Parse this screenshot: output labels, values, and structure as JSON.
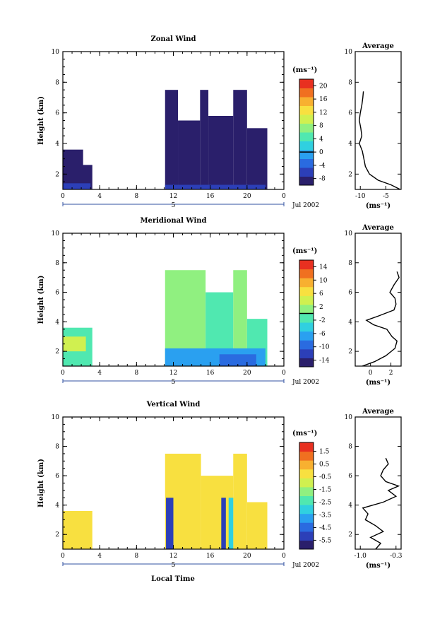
{
  "figure": {
    "xlabel": "Local Time",
    "date_label": "Jul 2002",
    "day_marker": "5",
    "height_label": "Height (km)",
    "unit": "(ms⁻¹)",
    "avg_title": "Average",
    "avg_unit": "(ms⁻¹)"
  },
  "colormap": [
    "#2a1f6b",
    "#2c3fb8",
    "#2a6be0",
    "#2aa0f0",
    "#30d0e0",
    "#50e8b0",
    "#90f080",
    "#d0f050",
    "#f8e040",
    "#f8b030",
    "#f07020",
    "#e83020"
  ],
  "chart_data": [
    {
      "type": "heatmap",
      "name": "zonal",
      "title": "Zonal Wind",
      "xlim": [
        0,
        24
      ],
      "ylim": [
        1,
        10
      ],
      "x_ticks": [
        "0",
        "4",
        "8",
        "12",
        "16",
        "20",
        "0"
      ],
      "y_ticks": [
        "2",
        "4",
        "6",
        "8",
        "10"
      ],
      "colorbar_ticks": [
        "20",
        "16",
        "12",
        "8",
        "4",
        "0",
        "-4",
        "-8"
      ],
      "colorbar_range": [
        -10,
        22
      ],
      "zero_level": 0,
      "data_blocks": [
        {
          "t": [
            0,
            2.2
          ],
          "h": [
            1.0,
            3.6
          ],
          "level": 0.02
        },
        {
          "t": [
            0,
            3.2
          ],
          "h": [
            1.0,
            2.6
          ],
          "level": 0.02
        },
        {
          "t": [
            0,
            3.0
          ],
          "h": [
            1.0,
            1.4
          ],
          "level": 0.12
        },
        {
          "t": [
            11.1,
            12.5
          ],
          "h": [
            1.0,
            7.5
          ],
          "level": 0.02
        },
        {
          "t": [
            12.5,
            14.9
          ],
          "h": [
            1.0,
            5.5
          ],
          "level": 0.02
        },
        {
          "t": [
            14.9,
            15.8
          ],
          "h": [
            1.0,
            7.5
          ],
          "level": 0.02
        },
        {
          "t": [
            15.8,
            18.5
          ],
          "h": [
            1.0,
            5.8
          ],
          "level": 0.02
        },
        {
          "t": [
            18.5,
            20.0
          ],
          "h": [
            1.0,
            7.5
          ],
          "level": 0.02
        },
        {
          "t": [
            20.0,
            22.2
          ],
          "h": [
            1.0,
            5.0
          ],
          "level": 0.02
        },
        {
          "t": [
            11.1,
            22.0
          ],
          "h": [
            1.0,
            1.3
          ],
          "level": 0.12
        }
      ],
      "avg": {
        "xlim": [
          -11,
          -2
        ],
        "x_ticks": [
          "-10",
          "-5"
        ],
        "y_ticks": [
          "2",
          "4",
          "6",
          "8",
          "10"
        ],
        "h": [
          1.0,
          1.3,
          1.6,
          2.0,
          2.5,
          3.0,
          3.5,
          4.0,
          4.5,
          5.0,
          5.5,
          6.0,
          6.5,
          7.0,
          7.4
        ],
        "v": [
          -2.2,
          -4.0,
          -6.5,
          -8.2,
          -9.0,
          -9.3,
          -9.6,
          -10.2,
          -9.7,
          -9.9,
          -10.2,
          -10.0,
          -9.7,
          -9.5,
          -9.4
        ]
      }
    },
    {
      "type": "heatmap",
      "name": "meridional",
      "title": "Meridional Wind",
      "xlim": [
        0,
        24
      ],
      "ylim": [
        1,
        10
      ],
      "x_ticks": [
        "0",
        "4",
        "8",
        "12",
        "16",
        "20",
        "0"
      ],
      "y_ticks": [
        "2",
        "4",
        "6",
        "8",
        "10"
      ],
      "colorbar_ticks": [
        "14",
        "10",
        "6",
        "2",
        "-2",
        "-6",
        "-10",
        "-14"
      ],
      "colorbar_range": [
        -16,
        16
      ],
      "zero_level": 0,
      "data_blocks": [
        {
          "t": [
            0,
            3.2
          ],
          "h": [
            1.0,
            3.6
          ],
          "level": 0.45
        },
        {
          "t": [
            0,
            2.5
          ],
          "h": [
            2.0,
            3.0
          ],
          "level": 0.65
        },
        {
          "t": [
            11.1,
            15.5
          ],
          "h": [
            1.0,
            7.5
          ],
          "level": 0.5
        },
        {
          "t": [
            15.5,
            18.5
          ],
          "h": [
            1.0,
            6.0
          ],
          "level": 0.42
        },
        {
          "t": [
            18.5,
            20.0
          ],
          "h": [
            1.0,
            7.5
          ],
          "level": 0.5
        },
        {
          "t": [
            20.0,
            22.2
          ],
          "h": [
            1.0,
            4.2
          ],
          "level": 0.42
        },
        {
          "t": [
            11.1,
            22.0
          ],
          "h": [
            1.0,
            2.2
          ],
          "level": 0.3
        },
        {
          "t": [
            17.0,
            21.0
          ],
          "h": [
            1.0,
            1.8
          ],
          "level": 0.22
        }
      ],
      "avg": {
        "xlim": [
          -1.5,
          3.0
        ],
        "x_ticks": [
          "0",
          "2"
        ],
        "y_ticks": [
          "2",
          "4",
          "6",
          "8",
          "10"
        ],
        "h": [
          1.0,
          1.3,
          1.7,
          2.2,
          2.7,
          3.0,
          3.5,
          3.8,
          4.1,
          4.4,
          4.8,
          5.2,
          5.6,
          6.0,
          6.5,
          7.0,
          7.4
        ],
        "v": [
          -0.8,
          0.4,
          1.5,
          2.4,
          2.6,
          2.1,
          1.6,
          0.3,
          -0.4,
          0.8,
          2.3,
          2.5,
          2.4,
          1.9,
          2.3,
          2.8,
          2.6
        ]
      }
    },
    {
      "type": "heatmap",
      "name": "vertical",
      "title": "Vertical Wind",
      "xlim": [
        0,
        24
      ],
      "ylim": [
        1,
        10
      ],
      "x_ticks": [
        "0",
        "4",
        "8",
        "12",
        "16",
        "20",
        "0"
      ],
      "y_ticks": [
        "2",
        "4",
        "6",
        "8",
        "10"
      ],
      "colorbar_ticks": [
        "1.5",
        "0.5",
        "-0.5",
        "-1.5",
        "-2.5",
        "-3.5",
        "-4.5",
        "-5.5"
      ],
      "colorbar_range": [
        -6.2,
        2.2
      ],
      "zero_level": null,
      "data_blocks": [
        {
          "t": [
            0,
            3.2
          ],
          "h": [
            1.0,
            3.6
          ],
          "level": 0.72
        },
        {
          "t": [
            11.1,
            15.0
          ],
          "h": [
            1.0,
            7.5
          ],
          "level": 0.75
        },
        {
          "t": [
            15.0,
            18.5
          ],
          "h": [
            1.0,
            6.0
          ],
          "level": 0.72
        },
        {
          "t": [
            18.5,
            20.0
          ],
          "h": [
            1.0,
            7.5
          ],
          "level": 0.75
        },
        {
          "t": [
            20.0,
            22.2
          ],
          "h": [
            1.0,
            4.2
          ],
          "level": 0.74
        },
        {
          "t": [
            11.2,
            12.0
          ],
          "h": [
            1.0,
            4.5
          ],
          "level": 0.08
        },
        {
          "t": [
            17.2,
            17.7
          ],
          "h": [
            1.0,
            4.5
          ],
          "level": 0.08
        },
        {
          "t": [
            18.0,
            18.5
          ],
          "h": [
            1.0,
            4.5
          ],
          "level": 0.35
        }
      ],
      "avg": {
        "xlim": [
          -1.1,
          -0.2
        ],
        "x_ticks": [
          "-1.0",
          "-0.3"
        ],
        "y_ticks": [
          "2",
          "4",
          "6",
          "8",
          "10"
        ],
        "h": [
          1.0,
          1.4,
          1.8,
          2.2,
          2.6,
          3.0,
          3.4,
          3.8,
          4.2,
          4.6,
          5.0,
          5.3,
          5.6,
          6.0,
          6.4,
          6.8,
          7.2
        ],
        "v": [
          -0.7,
          -0.6,
          -0.8,
          -0.55,
          -0.7,
          -0.9,
          -0.85,
          -0.95,
          -0.55,
          -0.3,
          -0.45,
          -0.25,
          -0.5,
          -0.6,
          -0.55,
          -0.45,
          -0.5
        ]
      }
    }
  ]
}
